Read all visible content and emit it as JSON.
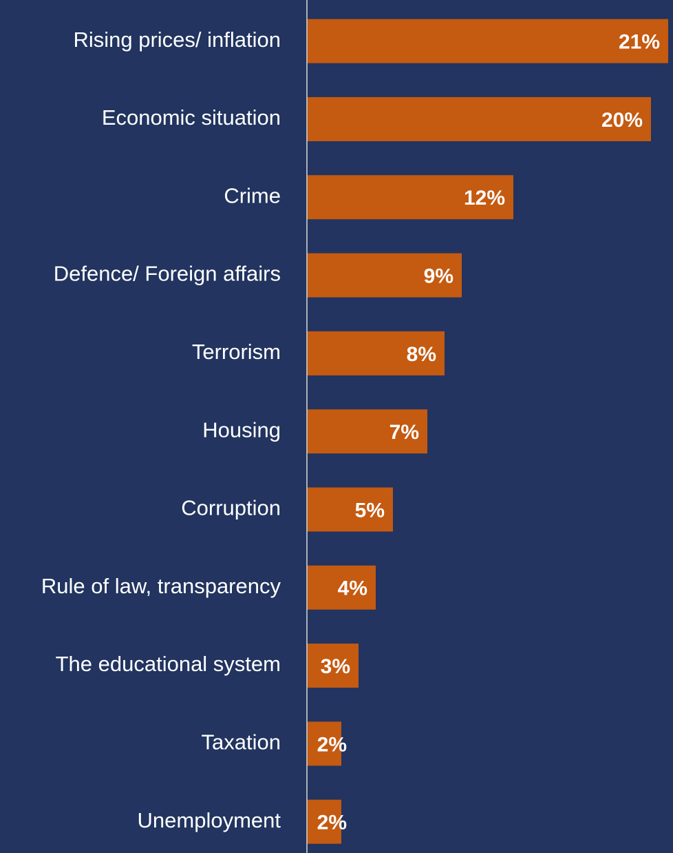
{
  "chart_data": {
    "type": "barh",
    "categories": [
      "Rising prices/ inflation",
      "Economic situation",
      "Crime",
      "Defence/ Foreign affairs",
      "Terrorism",
      "Housing",
      "Corruption",
      "Rule of law, transparency",
      "The educational system",
      "Taxation",
      "Unemployment"
    ],
    "values": [
      21,
      20,
      12,
      9,
      8,
      7,
      5,
      4,
      3,
      2,
      2
    ],
    "value_labels": [
      "21%",
      "20%",
      "12%",
      "9%",
      "8%",
      "7%",
      "5%",
      "4%",
      "3%",
      "2%",
      "2%"
    ],
    "color": "#c55a11",
    "xlim": [
      0,
      21
    ]
  }
}
